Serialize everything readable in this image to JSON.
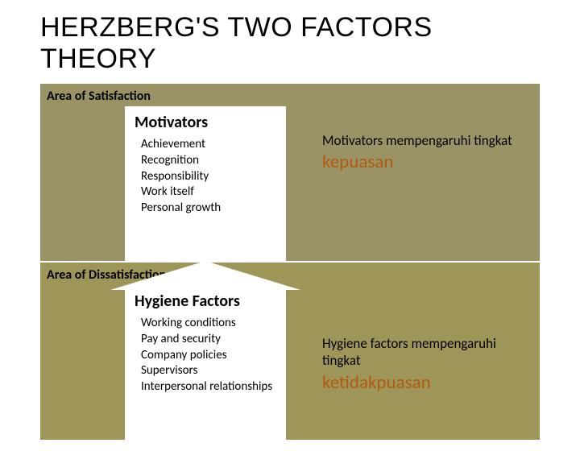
{
  "title_line1": "HERZBERG'S TWO FACTORS",
  "title_line2": "THEORY",
  "colors": {
    "top_area_bg": "#9a9365",
    "bottom_area_bg": "#9e9559",
    "arrow_bg": "#ffffff",
    "accent_text": "#b35b10",
    "text": "#000000",
    "page_bg": "#ffffff"
  },
  "top": {
    "area_label": "Area of Satisfaction",
    "arrow_title": "Motivators",
    "arrow_direction": "down",
    "items": [
      "Achievement",
      "Recognition",
      "Responsibility",
      "Work itself",
      "Personal growth"
    ],
    "side_lead": "Motivators mempengaruhi tingkat",
    "side_big": "kepuasan"
  },
  "bottom": {
    "area_label": "Area of Dissatisfaction",
    "arrow_title": "Hygiene Factors",
    "arrow_direction": "up",
    "items": [
      "Working conditions",
      "Pay and security",
      "Company policies",
      "Supervisors",
      "Interpersonal relationships"
    ],
    "side_lead": "Hygiene factors mempengaruhi tingkat",
    "side_big": "ketidakpuasan"
  },
  "layout": {
    "slide_width": 720,
    "slide_height": 540,
    "title_fontsize": 34,
    "area_label_fontsize": 16,
    "arrow_title_fontsize": 20,
    "item_fontsize": 15,
    "side_lead_fontsize": 17,
    "side_big_fontsize": 23
  }
}
